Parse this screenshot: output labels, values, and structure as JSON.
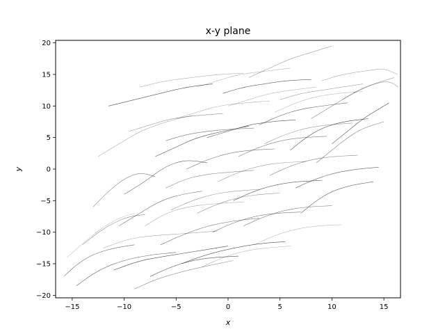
{
  "chart_data": {
    "type": "line",
    "title": "x-y plane",
    "xlabel": "x",
    "ylabel": "y",
    "xlim": [
      -16.6,
      16.6
    ],
    "ylim": [
      -20.4,
      20.4
    ],
    "xticks": [
      -15,
      -10,
      -5,
      0,
      5,
      10,
      15
    ],
    "yticks": [
      -20,
      -15,
      -10,
      -5,
      0,
      5,
      10,
      15,
      20
    ],
    "xtick_labels": [
      "−15",
      "−10",
      "−5",
      "0",
      "5",
      "10",
      "15"
    ],
    "ytick_labels": [
      "−20",
      "−15",
      "−10",
      "−5",
      "0",
      "5",
      "10",
      "15",
      "20"
    ],
    "grid": false,
    "line_color": "#000000",
    "series": [
      {
        "values": [
          [
            -15.5,
            -14.0
          ],
          [
            -13.8,
            -11.5
          ],
          [
            -12.2,
            -9.4
          ],
          [
            -10.6,
            -7.8
          ],
          [
            -9.0,
            -7.0
          ]
        ]
      },
      {
        "values": [
          [
            -14.6,
            -18.5
          ],
          [
            -12.5,
            -16.0
          ],
          [
            -10.0,
            -14.4
          ],
          [
            -7.5,
            -13.6
          ],
          [
            -5.0,
            -13.2
          ]
        ]
      },
      {
        "values": [
          [
            -13.0,
            -6.0
          ],
          [
            -11.5,
            -3.5
          ],
          [
            -10.0,
            -1.5
          ],
          [
            -8.5,
            -0.5
          ],
          [
            -7.0,
            -1.2
          ]
        ]
      },
      {
        "values": [
          [
            -12.0,
            -12.5
          ],
          [
            -9.5,
            -11.0
          ],
          [
            -7.0,
            -10.5
          ],
          [
            -4.0,
            -10.2
          ],
          [
            -1.0,
            -9.8
          ]
        ]
      },
      {
        "values": [
          [
            -11.0,
            -16.0
          ],
          [
            -8.5,
            -14.5
          ],
          [
            -6.0,
            -13.8
          ],
          [
            -3.0,
            -13.0
          ],
          [
            0.0,
            -12.2
          ]
        ]
      },
      {
        "values": [
          [
            -10.0,
            -4.0
          ],
          [
            -8.0,
            -2.0
          ],
          [
            -6.0,
            0.5
          ],
          [
            -4.0,
            1.5
          ],
          [
            -2.0,
            1.0
          ]
        ]
      },
      {
        "values": [
          [
            -9.0,
            -19.0
          ],
          [
            -7.0,
            -17.5
          ],
          [
            -5.0,
            -16.5
          ],
          [
            -2.5,
            -15.5
          ],
          [
            0.5,
            -14.5
          ]
        ]
      },
      {
        "values": [
          [
            -8.0,
            -9.0
          ],
          [
            -6.0,
            -7.0
          ],
          [
            -4.0,
            -6.0
          ],
          [
            -1.5,
            -5.5
          ],
          [
            1.5,
            -5.2
          ]
        ]
      },
      {
        "values": [
          [
            -7.0,
            2.0
          ],
          [
            -5.0,
            3.5
          ],
          [
            -3.0,
            5.0
          ],
          [
            -0.5,
            6.0
          ],
          [
            2.0,
            6.8
          ]
        ]
      },
      {
        "values": [
          [
            -6.5,
            -12.0
          ],
          [
            -4.5,
            -10.5
          ],
          [
            -2.0,
            -9.0
          ],
          [
            0.5,
            -8.2
          ],
          [
            3.0,
            -7.8
          ]
        ]
      },
      {
        "values": [
          [
            -6.0,
            -3.0
          ],
          [
            -4.0,
            -1.5
          ],
          [
            -2.0,
            -0.8
          ],
          [
            0.0,
            -0.5
          ],
          [
            2.5,
            -0.2
          ]
        ]
      },
      {
        "values": [
          [
            -5.0,
            8.0
          ],
          [
            -3.0,
            9.0
          ],
          [
            -1.0,
            10.0
          ],
          [
            1.5,
            10.5
          ],
          [
            4.0,
            10.8
          ]
        ]
      },
      {
        "values": [
          [
            -4.5,
            -15.0
          ],
          [
            -2.0,
            -13.5
          ],
          [
            0.5,
            -12.5
          ],
          [
            3.0,
            -11.8
          ],
          [
            5.5,
            -11.5
          ]
        ]
      },
      {
        "values": [
          [
            -4.0,
            0.0
          ],
          [
            -2.0,
            1.5
          ],
          [
            0.0,
            2.5
          ],
          [
            2.0,
            3.0
          ],
          [
            4.5,
            3.2
          ]
        ]
      },
      {
        "values": [
          [
            -3.0,
            -7.0
          ],
          [
            -1.0,
            -5.5
          ],
          [
            1.0,
            -4.5
          ],
          [
            3.0,
            -4.0
          ],
          [
            5.0,
            -3.8
          ]
        ]
      },
      {
        "values": [
          [
            -3.0,
            13.0
          ],
          [
            -1.0,
            14.0
          ],
          [
            1.0,
            15.0
          ],
          [
            3.5,
            15.5
          ],
          [
            6.0,
            16.0
          ]
        ]
      },
      {
        "values": [
          [
            -2.0,
            5.0
          ],
          [
            0.0,
            6.0
          ],
          [
            2.0,
            7.0
          ],
          [
            4.0,
            7.5
          ],
          [
            6.5,
            7.8
          ]
        ]
      },
      {
        "values": [
          [
            -1.5,
            -10.0
          ],
          [
            0.5,
            -8.5
          ],
          [
            2.5,
            -7.5
          ],
          [
            4.5,
            -7.0
          ],
          [
            7.0,
            -6.8
          ]
        ]
      },
      {
        "values": [
          [
            -1.0,
            -2.0
          ],
          [
            1.0,
            -0.5
          ],
          [
            3.0,
            0.5
          ],
          [
            5.0,
            1.0
          ],
          [
            7.5,
            1.2
          ]
        ]
      },
      {
        "values": [
          [
            0.0,
            10.0
          ],
          [
            2.0,
            11.0
          ],
          [
            4.0,
            12.0
          ],
          [
            6.0,
            12.5
          ],
          [
            8.5,
            13.0
          ]
        ]
      },
      {
        "values": [
          [
            0.5,
            -5.0
          ],
          [
            2.5,
            -3.5
          ],
          [
            4.5,
            -2.5
          ],
          [
            6.5,
            -2.0
          ],
          [
            9.0,
            -1.8
          ]
        ]
      },
      {
        "values": [
          [
            1.0,
            2.0
          ],
          [
            3.0,
            3.5
          ],
          [
            5.0,
            4.5
          ],
          [
            7.0,
            5.0
          ],
          [
            9.5,
            5.2
          ]
        ]
      },
      {
        "values": [
          [
            2.0,
            14.5
          ],
          [
            4.0,
            16.0
          ],
          [
            6.0,
            17.5
          ],
          [
            8.0,
            18.5
          ],
          [
            10.0,
            19.5
          ]
        ]
      },
      {
        "values": [
          [
            2.5,
            -12.0
          ],
          [
            4.5,
            -10.5
          ],
          [
            6.5,
            -9.5
          ],
          [
            8.5,
            -9.0
          ],
          [
            11.0,
            -8.8
          ]
        ]
      },
      {
        "values": [
          [
            3.0,
            7.0
          ],
          [
            5.0,
            8.5
          ],
          [
            7.0,
            9.5
          ],
          [
            9.0,
            10.0
          ],
          [
            11.5,
            10.5
          ]
        ]
      },
      {
        "values": [
          [
            4.0,
            -1.0
          ],
          [
            6.0,
            0.5
          ],
          [
            8.0,
            1.5
          ],
          [
            10.0,
            2.0
          ],
          [
            12.5,
            2.2
          ]
        ]
      },
      {
        "values": [
          [
            5.0,
            11.0
          ],
          [
            7.0,
            12.0
          ],
          [
            9.0,
            12.5
          ],
          [
            11.0,
            13.0
          ],
          [
            13.0,
            13.5
          ]
        ]
      },
      {
        "values": [
          [
            6.0,
            3.0
          ],
          [
            7.5,
            5.0
          ],
          [
            9.0,
            6.5
          ],
          [
            11.0,
            7.5
          ],
          [
            13.5,
            8.0
          ]
        ]
      },
      {
        "values": [
          [
            7.0,
            -7.0
          ],
          [
            8.5,
            -5.0
          ],
          [
            10.0,
            -3.5
          ],
          [
            12.0,
            -2.5
          ],
          [
            14.0,
            -2.0
          ]
        ]
      },
      {
        "values": [
          [
            8.0,
            8.0
          ],
          [
            10.0,
            10.0
          ],
          [
            12.0,
            12.0
          ],
          [
            14.0,
            13.5
          ],
          [
            16.0,
            14.5
          ]
        ]
      },
      {
        "values": [
          [
            9.0,
            14.0
          ],
          [
            11.0,
            15.0
          ],
          [
            13.0,
            15.5
          ],
          [
            15.0,
            16.0
          ],
          [
            16.3,
            15.0
          ]
        ]
      },
      {
        "values": [
          [
            10.0,
            4.0
          ],
          [
            11.5,
            6.0
          ],
          [
            13.0,
            8.0
          ],
          [
            14.5,
            9.5
          ],
          [
            15.5,
            10.5
          ]
        ]
      },
      {
        "values": [
          [
            -15.8,
            -17.0
          ],
          [
            -14.5,
            -15.0
          ],
          [
            -13.0,
            -13.5
          ],
          [
            -11.0,
            -12.5
          ],
          [
            -9.0,
            -12.0
          ]
        ]
      },
      {
        "values": [
          [
            -14.0,
            -12.0
          ],
          [
            -12.5,
            -10.0
          ],
          [
            -11.0,
            -8.5
          ],
          [
            -9.5,
            -7.5
          ],
          [
            -8.0,
            -7.2
          ]
        ]
      },
      {
        "values": [
          [
            -12.5,
            2.0
          ],
          [
            -10.5,
            4.0
          ],
          [
            -8.5,
            6.0
          ],
          [
            -6.0,
            7.5
          ],
          [
            -3.5,
            8.5
          ]
        ]
      },
      {
        "values": [
          [
            -11.5,
            10.0
          ],
          [
            -9.0,
            11.0
          ],
          [
            -6.5,
            12.0
          ],
          [
            -4.0,
            13.0
          ],
          [
            -1.5,
            13.5
          ]
        ]
      },
      {
        "values": [
          [
            -10.5,
            -9.0
          ],
          [
            -8.5,
            -7.0
          ],
          [
            -6.5,
            -5.0
          ],
          [
            -4.5,
            -4.0
          ],
          [
            -2.5,
            -3.5
          ]
        ]
      },
      {
        "values": [
          [
            -9.5,
            6.0
          ],
          [
            -7.5,
            7.0
          ],
          [
            -5.5,
            8.0
          ],
          [
            -3.0,
            8.5
          ],
          [
            -0.5,
            8.8
          ]
        ]
      },
      {
        "values": [
          [
            -8.5,
            13.0
          ],
          [
            -6.0,
            14.0
          ],
          [
            -3.5,
            14.5
          ],
          [
            -1.0,
            15.0
          ],
          [
            1.5,
            15.2
          ]
        ]
      },
      {
        "values": [
          [
            -7.5,
            -17.0
          ],
          [
            -5.5,
            -15.5
          ],
          [
            -3.5,
            -14.5
          ],
          [
            -1.5,
            -14.0
          ],
          [
            1.0,
            -13.8
          ]
        ]
      },
      {
        "values": [
          [
            -6.0,
            4.5
          ],
          [
            -4.0,
            5.5
          ],
          [
            -2.0,
            6.0
          ],
          [
            0.0,
            6.3
          ],
          [
            2.5,
            6.5
          ]
        ]
      },
      {
        "values": [
          [
            -5.5,
            -6.5
          ],
          [
            -3.5,
            -5.0
          ],
          [
            -1.5,
            -4.0
          ],
          [
            0.5,
            -3.5
          ],
          [
            3.0,
            -3.2
          ]
        ]
      },
      {
        "values": [
          [
            -2.5,
            -15.5
          ],
          [
            -0.5,
            -14.0
          ],
          [
            1.5,
            -13.0
          ],
          [
            3.5,
            -12.5
          ],
          [
            6.0,
            -12.2
          ]
        ]
      },
      {
        "values": [
          [
            -0.5,
            12.0
          ],
          [
            1.5,
            13.0
          ],
          [
            3.5,
            13.5
          ],
          [
            5.5,
            14.0
          ],
          [
            8.0,
            14.2
          ]
        ]
      },
      {
        "values": [
          [
            1.5,
            -9.0
          ],
          [
            3.5,
            -7.5
          ],
          [
            5.5,
            -6.5
          ],
          [
            7.5,
            -6.0
          ],
          [
            10.0,
            -5.8
          ]
        ]
      },
      {
        "values": [
          [
            3.5,
            4.0
          ],
          [
            5.5,
            5.5
          ],
          [
            7.5,
            6.5
          ],
          [
            9.5,
            7.0
          ],
          [
            12.0,
            7.3
          ]
        ]
      },
      {
        "values": [
          [
            4.5,
            9.0
          ],
          [
            6.5,
            10.5
          ],
          [
            8.5,
            11.5
          ],
          [
            10.5,
            12.0
          ],
          [
            13.0,
            12.3
          ]
        ]
      },
      {
        "values": [
          [
            6.5,
            -3.0
          ],
          [
            8.5,
            -1.5
          ],
          [
            10.5,
            -0.5
          ],
          [
            12.5,
            0.0
          ],
          [
            14.5,
            0.3
          ]
        ]
      },
      {
        "values": [
          [
            8.5,
            1.0
          ],
          [
            10.0,
            3.0
          ],
          [
            11.5,
            5.0
          ],
          [
            13.0,
            6.5
          ],
          [
            15.0,
            7.5
          ]
        ]
      },
      {
        "values": [
          [
            11.0,
            11.0
          ],
          [
            12.5,
            12.5
          ],
          [
            14.0,
            13.5
          ],
          [
            15.5,
            14.0
          ],
          [
            16.4,
            13.0
          ]
        ]
      }
    ]
  }
}
